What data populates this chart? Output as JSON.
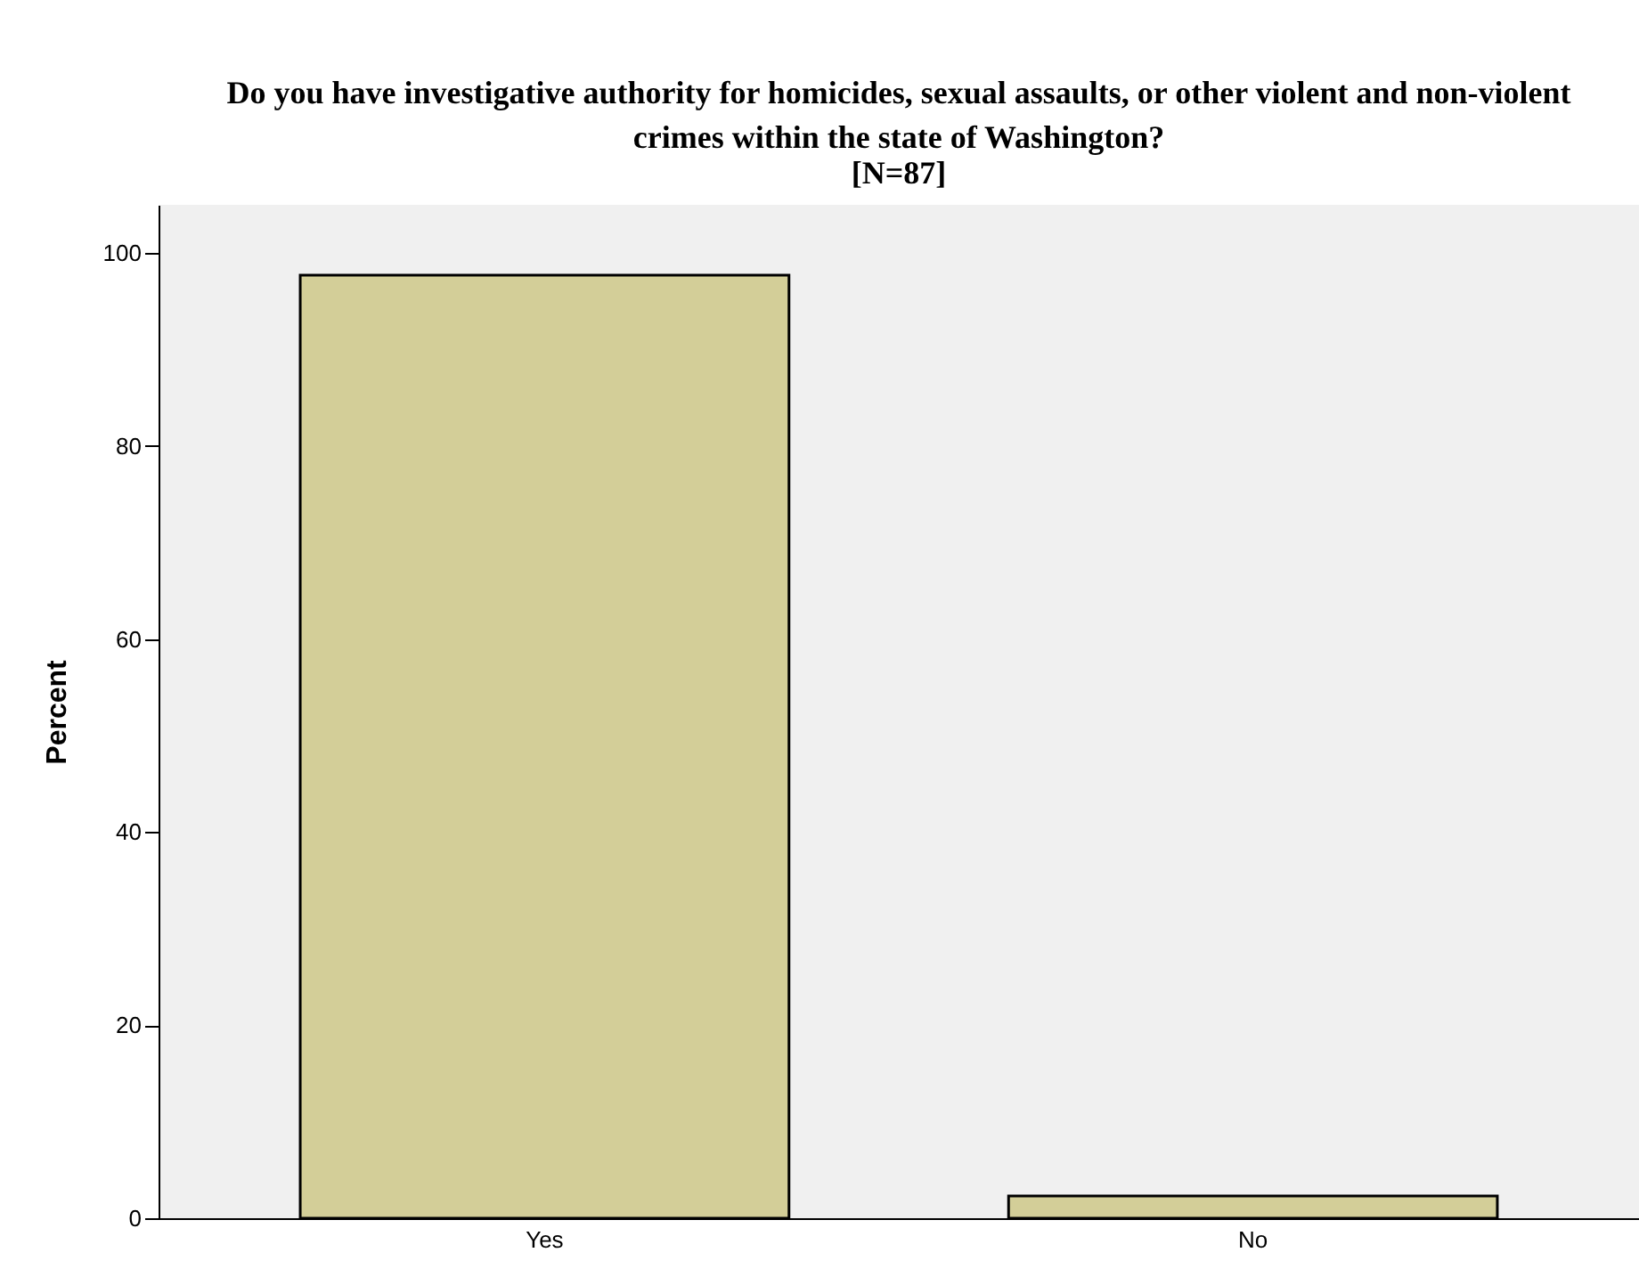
{
  "chart_data": {
    "type": "bar",
    "title": "Do you have investigative authority for homicides, sexual assaults, or other violent and non-violent crimes within the state of Washington?",
    "subtitle": "[N=87]",
    "ylabel": "Percent",
    "categories": [
      "Yes",
      "No"
    ],
    "values": [
      97.7,
      2.3
    ],
    "color": "#d3ce98",
    "ylim": [
      0,
      105
    ],
    "yticks": [
      0,
      20,
      40,
      60,
      80,
      100
    ],
    "grid": false,
    "legend": false
  }
}
